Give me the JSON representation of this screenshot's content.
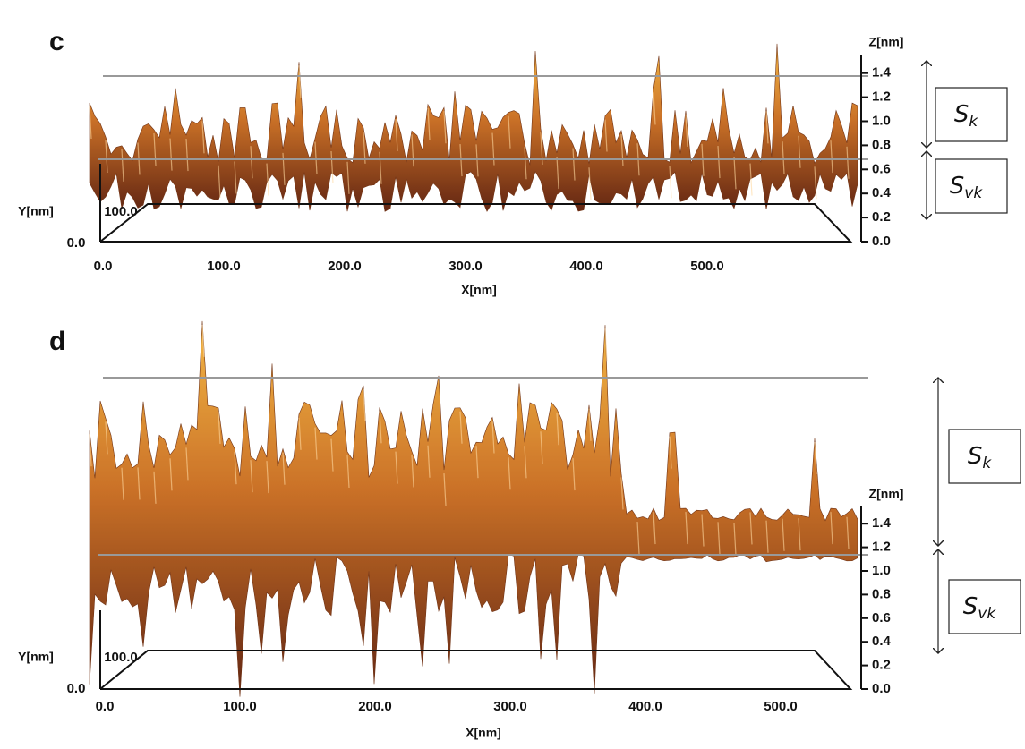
{
  "panels": [
    {
      "label": "c",
      "z_axis": {
        "title": "Z[nm]",
        "ticks": [
          "1.4",
          "1.2",
          "1.0",
          "0.8",
          "0.6",
          "0.4",
          "0.2",
          "0.0"
        ]
      },
      "x_axis": {
        "title": "X[nm]",
        "ticks": [
          "0.0",
          "100.0",
          "200.0",
          "300.0",
          "400.0",
          "500.0"
        ]
      },
      "y_axis": {
        "title": "Y[nm]",
        "ticks": [
          "100.0",
          "0.0"
        ]
      },
      "boxes": [
        {
          "symbol": "S",
          "subscript": "k"
        },
        {
          "symbol": "S",
          "subscript": "vk"
        }
      ]
    },
    {
      "label": "d",
      "z_axis": {
        "title": "Z[nm]",
        "ticks": [
          "1.4",
          "1.2",
          "1.0",
          "0.8",
          "0.6",
          "0.4",
          "0.2",
          "0.0"
        ]
      },
      "x_axis": {
        "title": "X[nm]",
        "ticks": [
          "0.0",
          "100.0",
          "200.0",
          "300.0",
          "400.0",
          "500.0"
        ]
      },
      "y_axis": {
        "title": "Y[nm]",
        "ticks": [
          "100.0",
          "0.0"
        ]
      },
      "boxes": [
        {
          "symbol": "S",
          "subscript": "k"
        },
        {
          "symbol": "S",
          "subscript": "vk"
        }
      ]
    }
  ]
}
